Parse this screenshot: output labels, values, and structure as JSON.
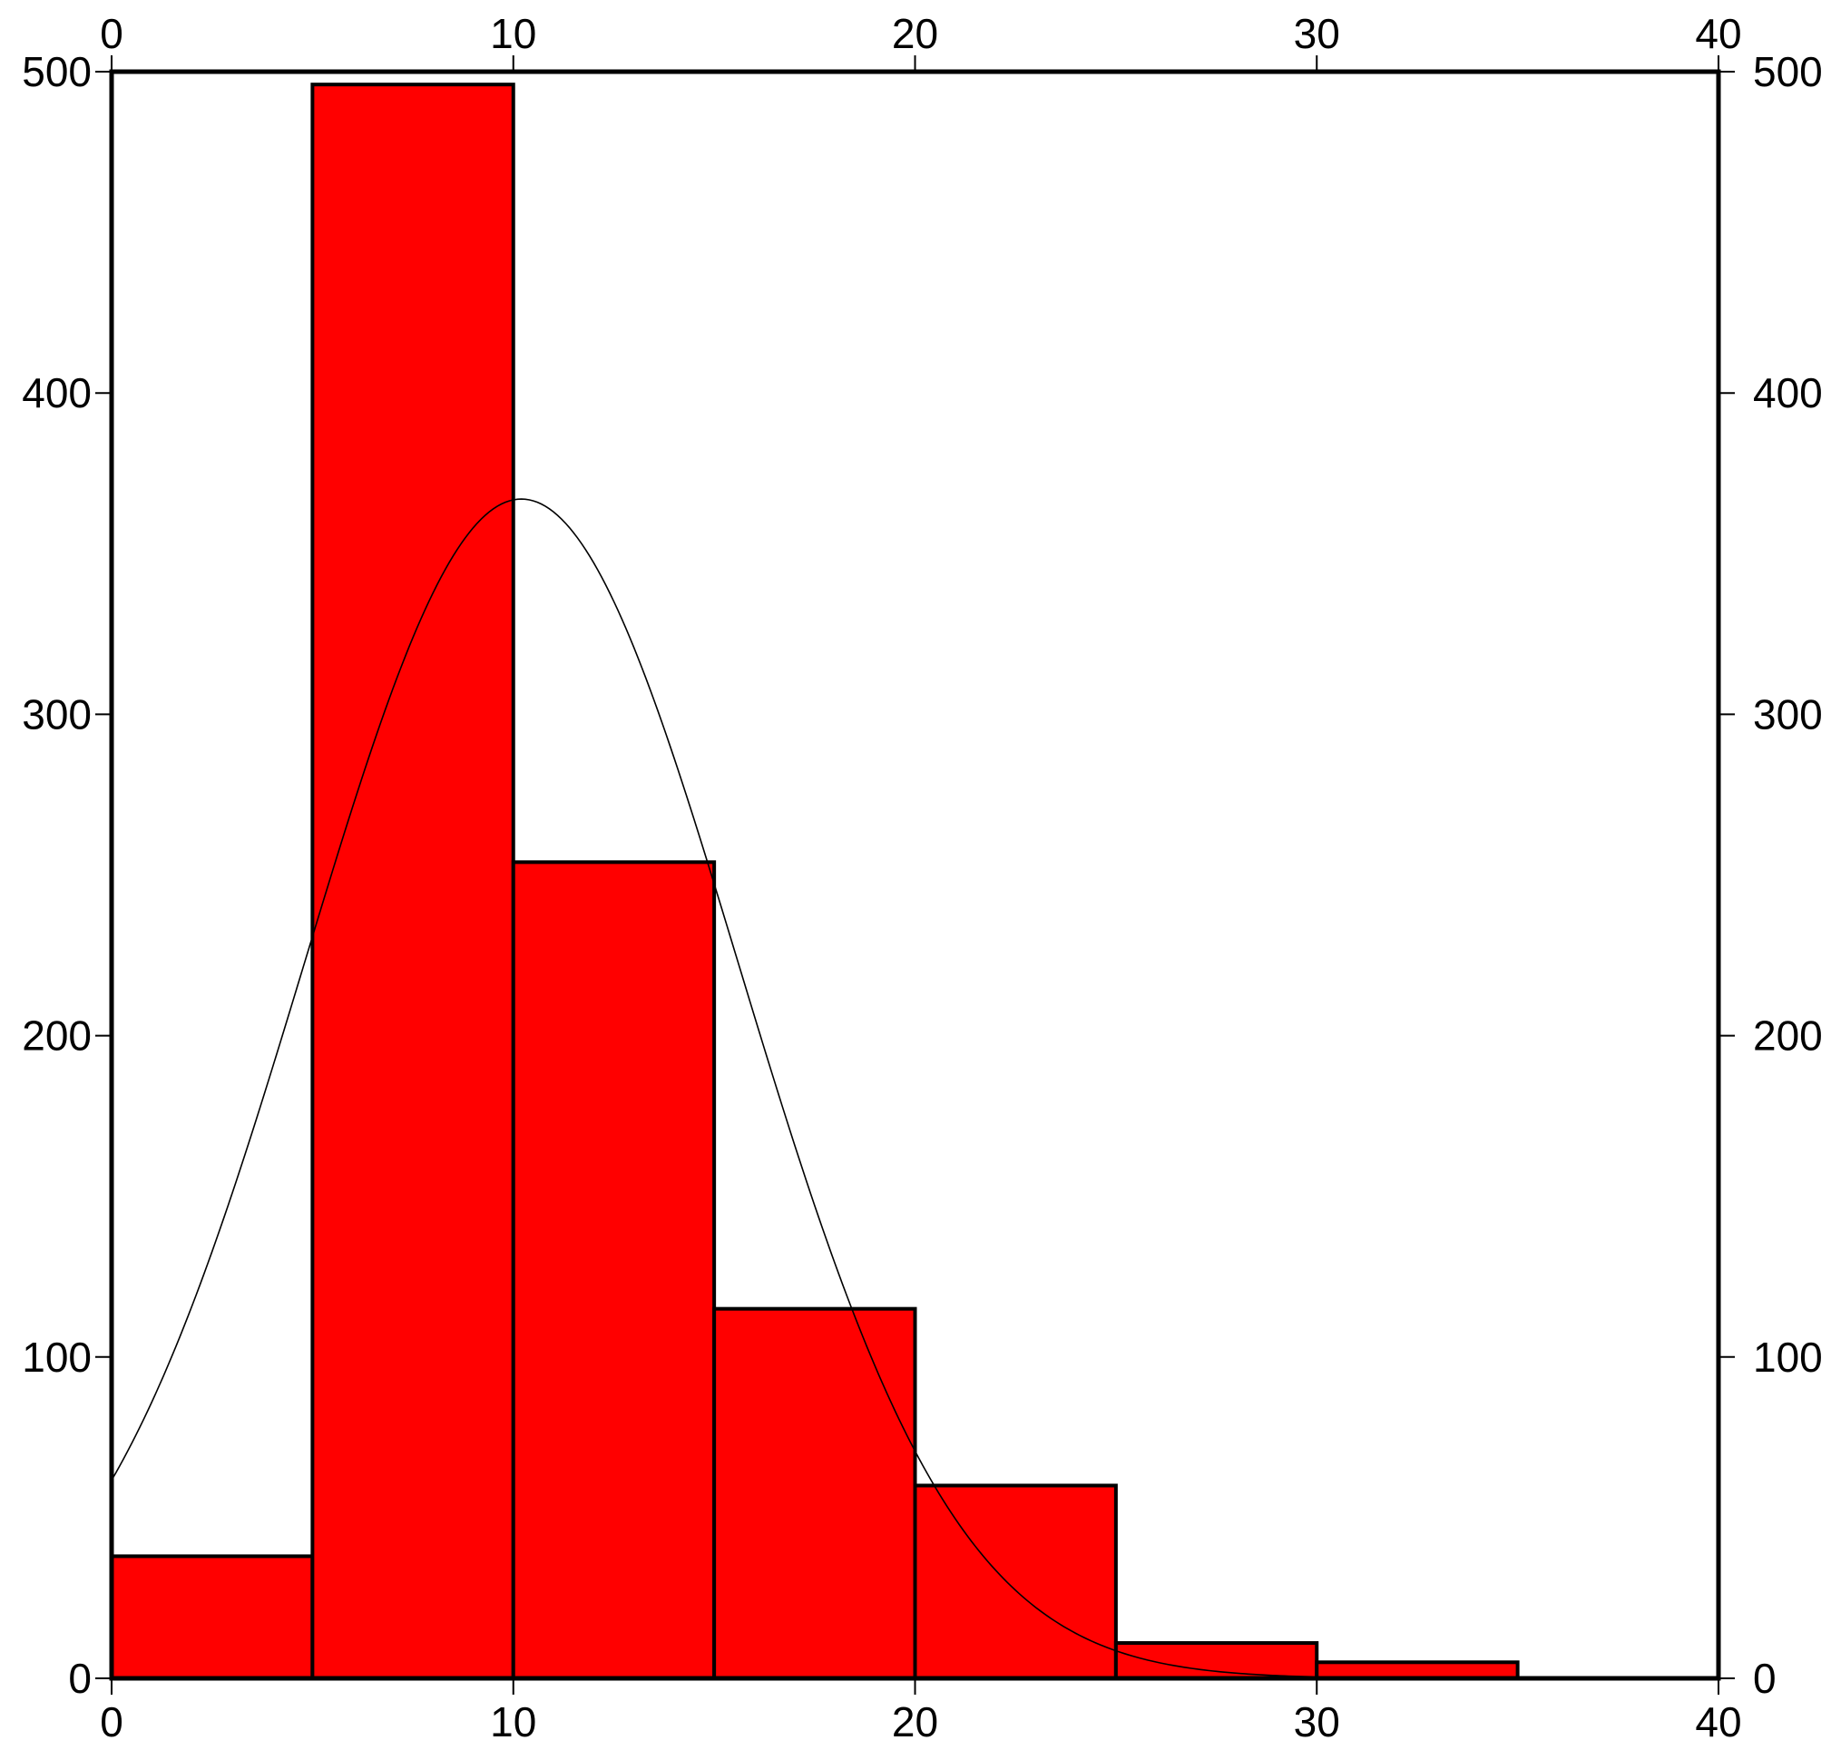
{
  "chart_data": {
    "type": "bar",
    "bin_width": 5,
    "bins": [
      {
        "x_start": 0,
        "x_end": 5,
        "value": 38
      },
      {
        "x_start": 5,
        "x_end": 10,
        "value": 496
      },
      {
        "x_start": 10,
        "x_end": 15,
        "value": 254
      },
      {
        "x_start": 15,
        "x_end": 20,
        "value": 115
      },
      {
        "x_start": 20,
        "x_end": 25,
        "value": 60
      },
      {
        "x_start": 25,
        "x_end": 30,
        "value": 11
      },
      {
        "x_start": 30,
        "x_end": 35,
        "value": 5
      },
      {
        "x_start": 35,
        "x_end": 40,
        "value": 0
      }
    ],
    "fitted_curve": {
      "type": "normal",
      "mean": 10.2,
      "sd": 5.4,
      "peak": 367
    },
    "xlim": [
      0,
      40
    ],
    "ylim": [
      0,
      500
    ],
    "x_ticks": [
      0,
      10,
      20,
      30,
      40
    ],
    "y_ticks": [
      0,
      100,
      200,
      300,
      400,
      500
    ],
    "x_tick_labels": [
      "0",
      "10",
      "20",
      "30",
      "40"
    ],
    "y_tick_labels": [
      "0",
      "100",
      "200",
      "300",
      "400",
      "500"
    ],
    "title": "",
    "xlabel": "",
    "ylabel": "",
    "grid": false,
    "bar_color": "#ff0000",
    "edge_color": "#000000",
    "curve_color": "#000000"
  }
}
